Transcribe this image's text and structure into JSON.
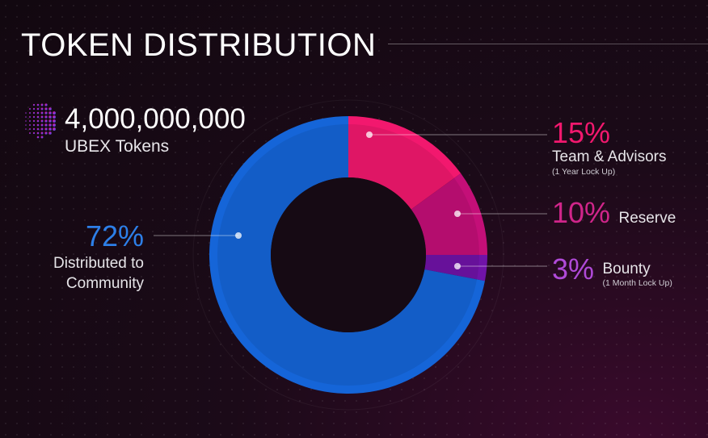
{
  "title": "TOKEN DISTRIBUTION",
  "total": {
    "amount": "4,000,000,000",
    "unit": "UBEX Tokens",
    "icon": "dotted-globe-icon"
  },
  "colors": {
    "community": "#1565d8",
    "team": "#f2186e",
    "reserve": "#c40f78",
    "bounty": "#7013a8",
    "background": "#160a14"
  },
  "chart_data": {
    "type": "pie",
    "donut": true,
    "title": "TOKEN DISTRIBUTION",
    "slices": [
      {
        "label": "Team & Advisors",
        "value": 15,
        "display": "15%",
        "note": "(1 Year Lock Up)",
        "color": "#f2186e"
      },
      {
        "label": "Reserve",
        "value": 10,
        "display": "10%",
        "note": "",
        "color": "#c40f78"
      },
      {
        "label": "Bounty",
        "value": 3,
        "display": "3%",
        "note": "(1 Month Lock Up)",
        "color": "#7013a8"
      },
      {
        "label": "Distributed to Community",
        "value": 72,
        "display": "72%",
        "note": "",
        "color": "#1565d8"
      }
    ]
  },
  "labels": {
    "team": {
      "pct": "15%",
      "name": "Team & Advisors",
      "note": "(1 Year Lock Up)"
    },
    "reserve": {
      "pct": "10%",
      "name": "Reserve"
    },
    "bounty": {
      "pct": "3%",
      "name": "Bounty",
      "note": "(1 Month Lock Up)"
    },
    "community": {
      "pct": "72%",
      "line1": "Distributed to",
      "line2": "Community"
    }
  }
}
